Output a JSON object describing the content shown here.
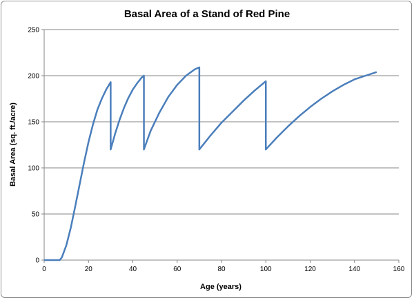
{
  "chart_data": {
    "type": "line",
    "title": "Basal Area of a Stand of Red Pine",
    "xlabel": "Age (years)",
    "ylabel": "Basal Area (sq. ft./acre)",
    "xlim": [
      0,
      160
    ],
    "ylim": [
      0,
      250
    ],
    "x_ticks": [
      0,
      20,
      40,
      60,
      80,
      100,
      120,
      140,
      160
    ],
    "y_ticks": [
      0,
      50,
      100,
      150,
      200,
      250
    ],
    "grid": "horizontal major gridlines",
    "legend": "none",
    "series_color": "#4a7ebb",
    "series": [
      {
        "x": [
          0,
          7,
          8,
          10,
          12,
          14,
          16,
          18,
          20,
          22,
          24,
          26,
          28,
          30,
          30,
          32,
          34,
          36,
          38,
          40,
          42,
          44,
          45,
          45,
          48,
          52,
          56,
          60,
          64,
          68,
          70,
          70,
          75,
          80,
          85,
          90,
          95,
          100,
          100,
          105,
          110,
          115,
          120,
          125,
          130,
          135,
          140,
          145,
          150
        ],
        "y": [
          0,
          0,
          3,
          16,
          35,
          58,
          82,
          106,
          128,
          147,
          163,
          175,
          185,
          193,
          120,
          137,
          152,
          165,
          176,
          185,
          192,
          198,
          200,
          120,
          140,
          160,
          177,
          190,
          200,
          207,
          209,
          120,
          135,
          149,
          161,
          173,
          184,
          194,
          120,
          133,
          145,
          156,
          166,
          175,
          183,
          190,
          196,
          200,
          204
        ]
      }
    ]
  }
}
